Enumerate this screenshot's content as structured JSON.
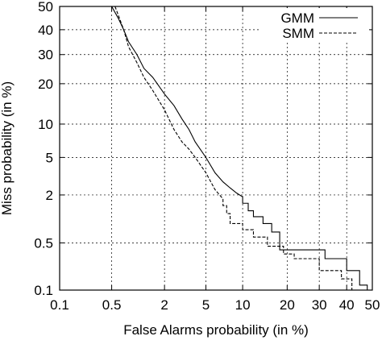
{
  "chart_data": {
    "type": "line",
    "title": "",
    "xlabel": "False Alarms probability (in %)",
    "ylabel": "Miss probability (in %)",
    "x_scale": "probit",
    "y_scale": "probit",
    "xlim": [
      0.1,
      50
    ],
    "ylim": [
      0.1,
      50
    ],
    "x_ticks": [
      0.1,
      0.5,
      2,
      5,
      10,
      20,
      30,
      40,
      50
    ],
    "x_tick_labels": [
      "0.1",
      "0.5",
      "2",
      "5",
      "10",
      "20",
      "30",
      "40",
      "50"
    ],
    "y_ticks": [
      0.1,
      0.5,
      2,
      5,
      10,
      20,
      30,
      40,
      50
    ],
    "y_tick_labels": [
      "0.1",
      "0.5",
      "2",
      "5",
      "10",
      "20",
      "30",
      "40",
      "50"
    ],
    "grid": true,
    "legend_position": "top-right",
    "series": [
      {
        "name": "GMM",
        "line_style": "solid",
        "color": "#000000",
        "points": [
          [
            0.5,
            50
          ],
          [
            0.6,
            45
          ],
          [
            0.7,
            40
          ],
          [
            0.8,
            35
          ],
          [
            1.0,
            30
          ],
          [
            1.2,
            25
          ],
          [
            1.5,
            22
          ],
          [
            2.0,
            17
          ],
          [
            2.5,
            14
          ],
          [
            3.0,
            11
          ],
          [
            3.5,
            9
          ],
          [
            4.0,
            7
          ],
          [
            5.0,
            5
          ],
          [
            6.0,
            3.5
          ],
          [
            7.0,
            2.8
          ],
          [
            8.0,
            2.4
          ],
          [
            9.0,
            2.1
          ],
          [
            10.0,
            1.9
          ],
          [
            10.0,
            1.6
          ],
          [
            11.0,
            1.6
          ],
          [
            11.0,
            1.3
          ],
          [
            12.0,
            1.3
          ],
          [
            12.0,
            1.1
          ],
          [
            14.0,
            1.1
          ],
          [
            14.0,
            0.9
          ],
          [
            16.0,
            0.9
          ],
          [
            16.0,
            0.7
          ],
          [
            18.0,
            0.7
          ],
          [
            18.0,
            0.4
          ],
          [
            32.0,
            0.4
          ],
          [
            32.0,
            0.3
          ],
          [
            40.0,
            0.3
          ],
          [
            40.0,
            0.2
          ],
          [
            45.0,
            0.2
          ],
          [
            45.0,
            0.12
          ],
          [
            48.0,
            0.12
          ],
          [
            48.0,
            0.1
          ],
          [
            50.0,
            0.1
          ]
        ]
      },
      {
        "name": "SMM",
        "line_style": "dashed",
        "color": "#000000",
        "points": [
          [
            0.55,
            50
          ],
          [
            0.7,
            40
          ],
          [
            0.8,
            33
          ],
          [
            1.0,
            27
          ],
          [
            1.2,
            22
          ],
          [
            1.5,
            18
          ],
          [
            2.0,
            13
          ],
          [
            2.5,
            9
          ],
          [
            3.0,
            7
          ],
          [
            3.5,
            6
          ],
          [
            4.0,
            5
          ],
          [
            5.0,
            3.5
          ],
          [
            6.0,
            2.3
          ],
          [
            7.0,
            1.8
          ],
          [
            7.0,
            1.5
          ],
          [
            7.5,
            1.5
          ],
          [
            7.5,
            1.2
          ],
          [
            8.0,
            1.2
          ],
          [
            8.0,
            0.9
          ],
          [
            10.0,
            0.9
          ],
          [
            10.0,
            0.75
          ],
          [
            12.0,
            0.75
          ],
          [
            12.0,
            0.6
          ],
          [
            15.0,
            0.6
          ],
          [
            15.0,
            0.45
          ],
          [
            19.0,
            0.45
          ],
          [
            19.0,
            0.35
          ],
          [
            22.0,
            0.35
          ],
          [
            22.0,
            0.3
          ],
          [
            30.0,
            0.3
          ],
          [
            30.0,
            0.2
          ],
          [
            38.0,
            0.2
          ],
          [
            38.0,
            0.15
          ],
          [
            42.0,
            0.15
          ],
          [
            42.0,
            0.1
          ],
          [
            50.0,
            0.1
          ]
        ]
      }
    ]
  }
}
